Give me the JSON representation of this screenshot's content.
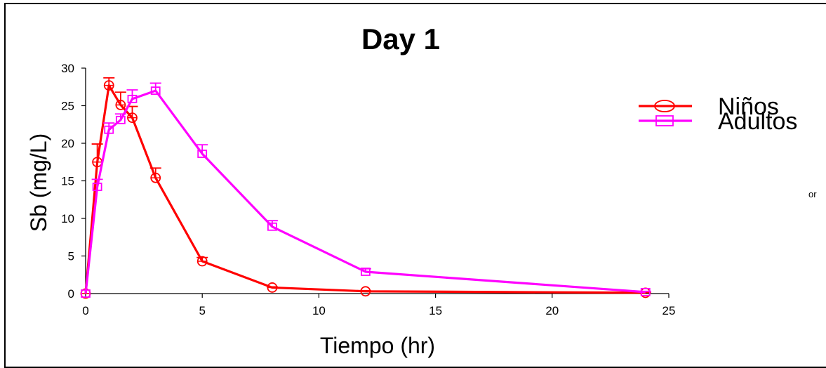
{
  "chart_data": {
    "type": "line",
    "title": "Day 1",
    "xlabel": "Tiempo (hr)",
    "ylabel": "Sb (mg/L)",
    "xlim": [
      0,
      25
    ],
    "ylim": [
      0,
      30
    ],
    "xticks": [
      0,
      5,
      10,
      15,
      20,
      25
    ],
    "yticks": [
      0,
      5,
      10,
      15,
      20,
      25,
      30
    ],
    "grid": false,
    "legend_position": "top-right",
    "series": [
      {
        "name": "Niños",
        "color": "#ff0000",
        "marker": "circle",
        "x": [
          0,
          0.5,
          1,
          1.5,
          2,
          3,
          5,
          8,
          12,
          24
        ],
        "y": [
          0,
          17.5,
          27.7,
          25.1,
          23.4,
          15.4,
          4.3,
          0.8,
          0.3,
          0.1
        ],
        "error": [
          0,
          2.4,
          1.0,
          1.7,
          1.5,
          1.3,
          0.5,
          0.1,
          0.1,
          0.05
        ]
      },
      {
        "name": "Adultos",
        "color": "#ff00ff",
        "marker": "square",
        "x": [
          0,
          0.5,
          1,
          1.5,
          2,
          3,
          5,
          8,
          12,
          24
        ],
        "y": [
          0,
          14.2,
          21.8,
          23.1,
          25.9,
          27.0,
          18.6,
          8.9,
          2.9,
          0.2
        ],
        "error": [
          0,
          1.0,
          0.9,
          0.8,
          1.2,
          1.0,
          1.2,
          0.8,
          0.4,
          0.1
        ]
      }
    ]
  },
  "stray_text": "or"
}
